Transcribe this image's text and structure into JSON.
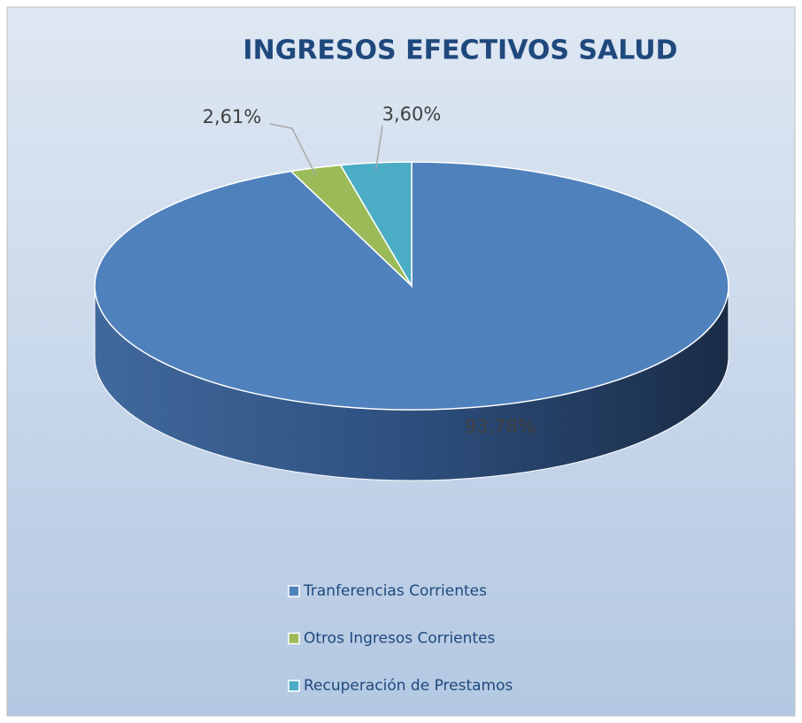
{
  "chart_data": {
    "type": "pie",
    "title": "INGRESOS EFECTIVOS SALUD",
    "categories": [
      "Tranferencias Corrientes",
      "Otros Ingresos Corrientes",
      "Recuperación de Prestamos"
    ],
    "values": [
      93.78,
      2.61,
      3.6
    ],
    "value_labels": [
      "93,78%",
      "2,61%",
      "3,60%"
    ],
    "colors": [
      "#4f81bd",
      "#9bbb59",
      "#4bacc6"
    ],
    "legend": "bottom"
  }
}
